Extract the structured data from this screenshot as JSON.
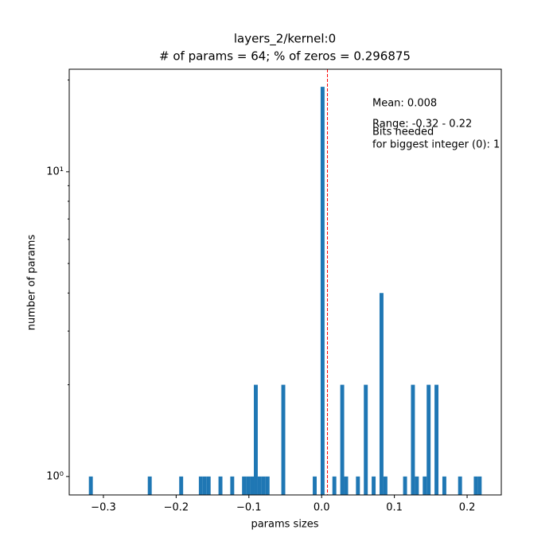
{
  "chart_data": {
    "type": "histogram",
    "title": [
      "layers_2/kernel:0",
      "# of params = 64; % of zeros = 0.296875"
    ],
    "xlabel": "params sizes",
    "ylabel": "number of params",
    "bins": [
      -0.32,
      -0.3146,
      -0.3092,
      -0.3038,
      -0.2984,
      -0.293,
      -0.2876,
      -0.2822,
      -0.2768,
      -0.2714,
      -0.266,
      -0.2606,
      -0.2552,
      -0.2498,
      -0.2444,
      -0.239,
      -0.2336,
      -0.2282,
      -0.2228,
      -0.2174,
      -0.212,
      -0.2066,
      -0.2012,
      -0.1958,
      -0.1904,
      -0.185,
      -0.1796,
      -0.1742,
      -0.1688,
      -0.1634,
      -0.158,
      -0.1526,
      -0.1472,
      -0.1418,
      -0.1364,
      -0.131,
      -0.1256,
      -0.1202,
      -0.1148,
      -0.1094,
      -0.104,
      -0.0986,
      -0.0932,
      -0.0878,
      -0.0824,
      -0.077,
      -0.0716,
      -0.0662,
      -0.0608,
      -0.0554,
      -0.05,
      -0.0446,
      -0.0392,
      -0.0338,
      -0.0284,
      -0.023,
      -0.0176,
      -0.0122,
      -0.0068,
      -0.0014,
      0.004,
      0.0094,
      0.0148,
      0.0202,
      0.0256,
      0.031,
      0.0364,
      0.0418,
      0.0472,
      0.0526,
      0.058,
      0.0634,
      0.0688,
      0.0742,
      0.0796,
      0.085,
      0.0904,
      0.0958,
      0.1012,
      0.1066,
      0.112,
      0.1174,
      0.1228,
      0.1282,
      0.1336,
      0.139,
      0.1444,
      0.1498,
      0.1552,
      0.1606,
      0.166,
      0.1714,
      0.1768,
      0.1822,
      0.1876,
      0.193,
      0.1984,
      0.2038,
      0.2092,
      0.2146,
      0.22
    ],
    "values": [
      1,
      0,
      0,
      0,
      0,
      0,
      0,
      0,
      0,
      0,
      0,
      0,
      0,
      0,
      0,
      1,
      0,
      0,
      0,
      0,
      0,
      0,
      0,
      1,
      0,
      0,
      0,
      0,
      1,
      1,
      1,
      0,
      0,
      1,
      0,
      0,
      1,
      0,
      0,
      1,
      1,
      1,
      2,
      1,
      1,
      1,
      0,
      0,
      0,
      2,
      0,
      0,
      0,
      0,
      0,
      0,
      0,
      1,
      0,
      19,
      0,
      0,
      1,
      0,
      2,
      1,
      0,
      0,
      1,
      0,
      2,
      0,
      1,
      0,
      4,
      1,
      0,
      0,
      0,
      0,
      1,
      0,
      2,
      1,
      0,
      1,
      2,
      0,
      2,
      0,
      1,
      0,
      0,
      0,
      1,
      0,
      0,
      0,
      1,
      1
    ],
    "color": "#1f77b4",
    "mean_line": 0.008,
    "mean_line_color": "#ff0000",
    "annotations": [
      "Mean: 0.008",
      "Range: -0.32 - 0.22",
      "Bits needed",
      "for biggest integer (0): 1"
    ],
    "xlim": [
      -0.347,
      0.247
    ],
    "xticks": [
      {
        "value": -0.3,
        "label": "−0.3"
      },
      {
        "value": -0.2,
        "label": "−0.2"
      },
      {
        "value": -0.1,
        "label": "−0.1"
      },
      {
        "value": 0,
        "label": "0.0"
      },
      {
        "value": 0.1,
        "label": "0.1"
      },
      {
        "value": 0.2,
        "label": "0.2"
      }
    ],
    "ylim": [
      0.87,
      21.7
    ],
    "ylog": true,
    "yticks": [
      {
        "value": 1,
        "label": "10⁰"
      },
      {
        "value": 10,
        "label": "10¹"
      }
    ],
    "yminorticks": [
      2,
      3,
      4,
      5,
      6,
      7,
      8,
      9,
      20
    ]
  }
}
